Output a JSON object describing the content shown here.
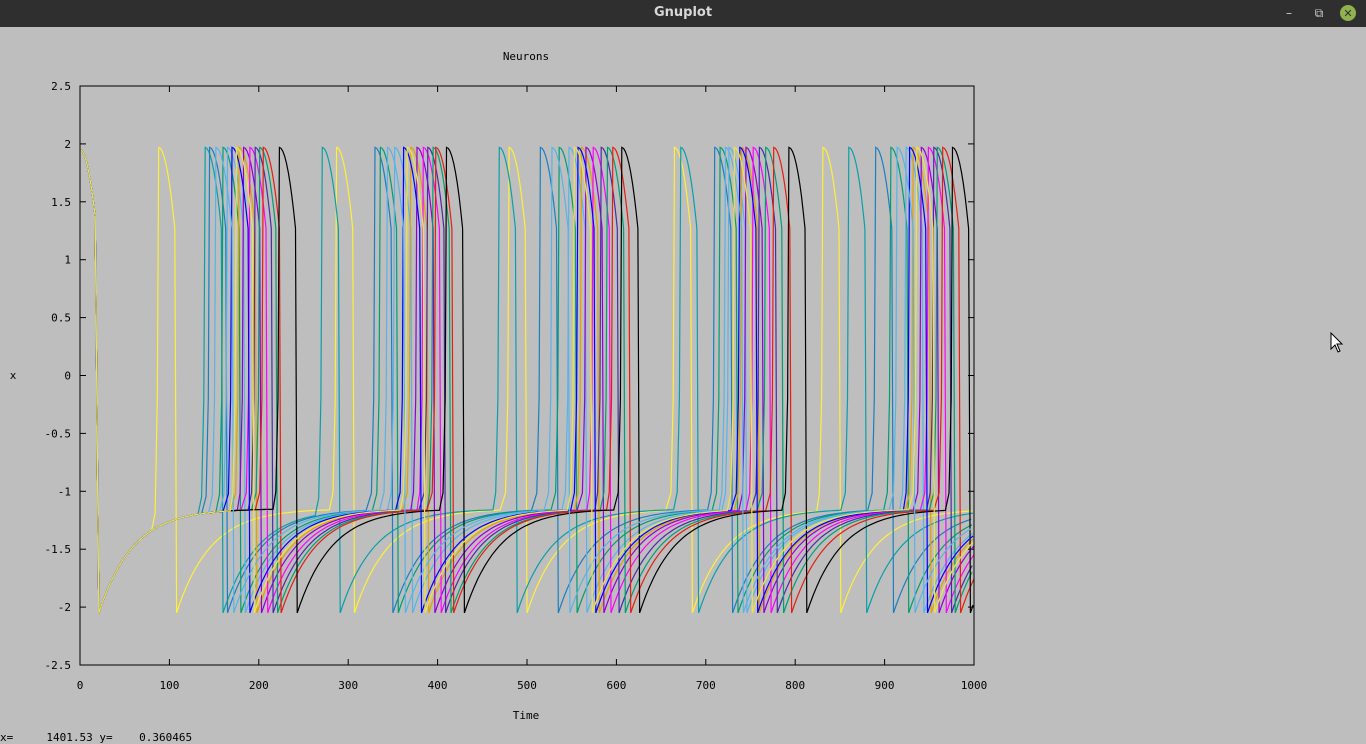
{
  "window": {
    "title": "Gnuplot"
  },
  "status": {
    "x_label": "x=",
    "x_value": "1401.53",
    "y_label": "y=",
    "y_value": "0.360465"
  },
  "chart_data": {
    "type": "line",
    "title": "Neurons",
    "xlabel": "Time",
    "ylabel": "x",
    "xlim": [
      0,
      1000
    ],
    "ylim": [
      -2.5,
      2.5
    ],
    "xticks": [
      0,
      100,
      200,
      300,
      400,
      500,
      600,
      700,
      800,
      900,
      1000
    ],
    "yticks": [
      2.5,
      2,
      1.5,
      1,
      0.5,
      0,
      -0.5,
      -1,
      -1.5,
      -2,
      -2.5
    ],
    "grid": false,
    "series": [
      {
        "color": "#ffef3a",
        "spikes": [
          88,
          287,
          480,
          665,
          831
        ]
      },
      {
        "color": "#0a9fa8",
        "spikes": [
          140,
          271,
          469,
          672,
          860
        ]
      },
      {
        "color": "#1a7fc1",
        "spikes": [
          145,
          330,
          515,
          710,
          890
        ]
      },
      {
        "color": "#009e73",
        "spikes": [
          160,
          336,
          536,
          716,
          907
        ]
      },
      {
        "color": "#56b4e9",
        "spikes": [
          165,
          352,
          547,
          726,
          924
        ]
      },
      {
        "color": "#e69f00",
        "spikes": [
          178,
          370,
          561,
          740,
          932
        ]
      },
      {
        "color": "#9400d3",
        "spikes": [
          183,
          377,
          566,
          745,
          941
        ]
      },
      {
        "color": "#ff00ff",
        "spikes": [
          190,
          384,
          574,
          753,
          949
        ]
      },
      {
        "color": "#4b2ba8",
        "spikes": [
          196,
          389,
          583,
          760,
          955
        ]
      },
      {
        "color": "#009e73",
        "spikes": [
          201,
          395,
          590,
          767,
          959
        ]
      },
      {
        "color": "#e51e10",
        "spikes": [
          205,
          398,
          596,
          776,
          965
        ]
      },
      {
        "color": "#000000",
        "spikes": [
          223,
          410,
          606,
          793,
          976
        ]
      },
      {
        "color": "#0000ff",
        "spikes": [
          170,
          362,
          557,
          738,
          928
        ]
      },
      {
        "color": "#56b4e9",
        "spikes": [
          152,
          344,
          528,
          722,
          914
        ]
      },
      {
        "color": "#f0e442",
        "spikes": [
          175,
          366,
          553,
          732,
          936
        ]
      }
    ]
  }
}
